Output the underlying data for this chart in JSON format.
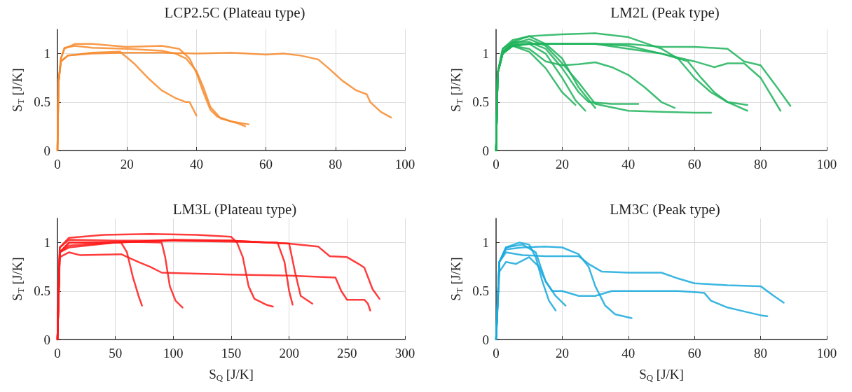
{
  "chart_data": [
    {
      "type": "line",
      "title": "LCP2.5C (Plateau type)",
      "ylabel": "S$_{T}$ [J/K]",
      "xlim": [
        0,
        100
      ],
      "xticks": [
        0,
        20,
        40,
        60,
        80,
        100
      ],
      "ylim": [
        0,
        1.25
      ],
      "yticks": [
        0,
        0.5,
        1
      ],
      "grid": true,
      "series": [
        {
          "color": "#f7892b",
          "x": [
            0,
            0.3,
            1,
            2,
            5,
            10,
            20,
            30,
            35,
            38,
            40,
            42,
            44,
            46,
            50,
            55
          ],
          "values": [
            0,
            0.7,
            0.95,
            1.05,
            1.1,
            1.1,
            1.07,
            1.08,
            1.05,
            0.95,
            0.8,
            0.6,
            0.42,
            0.35,
            0.3,
            0.27
          ]
        },
        {
          "color": "#f7892b",
          "x": [
            0,
            0.3,
            1,
            2,
            5,
            10,
            20,
            30,
            34,
            37,
            40,
            42,
            44,
            47,
            52,
            54
          ],
          "values": [
            0,
            0.7,
            0.95,
            1.06,
            1.08,
            1.06,
            1.05,
            1.03,
            1,
            0.95,
            0.82,
            0.65,
            0.45,
            0.33,
            0.28,
            0.25
          ]
        },
        {
          "color": "#f7892b",
          "x": [
            0,
            0.3,
            1,
            3,
            10,
            18,
            22,
            26,
            30,
            34,
            37,
            38,
            40
          ],
          "values": [
            0,
            0.7,
            0.92,
            0.98,
            1.01,
            1.02,
            0.9,
            0.75,
            0.62,
            0.54,
            0.5,
            0.5,
            0.36
          ]
        },
        {
          "color": "#f7892b",
          "x": [
            0,
            0.3,
            1,
            3,
            10,
            20,
            30,
            40,
            50,
            60,
            65,
            70,
            75,
            78,
            82,
            86,
            89,
            90,
            93,
            96
          ],
          "values": [
            0,
            0.7,
            0.92,
            0.98,
            1,
            1.01,
            1.01,
            1,
            1.01,
            0.99,
            1,
            0.98,
            0.94,
            0.85,
            0.72,
            0.62,
            0.58,
            0.5,
            0.4,
            0.34
          ]
        }
      ]
    },
    {
      "type": "line",
      "title": "LM2L (Peak type)",
      "ylabel": "S$_{T}$ [J/K]",
      "xlim": [
        0,
        100
      ],
      "xticks": [
        0,
        20,
        40,
        60,
        80,
        100
      ],
      "ylim": [
        0,
        1.25
      ],
      "yticks": [
        0,
        0.5,
        1
      ],
      "grid": true,
      "series": [
        {
          "color": "#1db35b",
          "x": [
            0,
            0.5,
            2,
            5,
            10,
            15,
            20,
            24
          ],
          "values": [
            0,
            0.8,
            1,
            1.08,
            1.02,
            0.85,
            0.6,
            0.47
          ]
        },
        {
          "color": "#1db35b",
          "x": [
            0,
            0.5,
            2,
            5,
            10,
            15,
            20,
            24,
            27
          ],
          "values": [
            0,
            0.8,
            1.02,
            1.1,
            1.1,
            1,
            0.75,
            0.52,
            0.41
          ]
        },
        {
          "color": "#1db35b",
          "x": [
            0,
            0.5,
            2,
            5,
            10,
            15,
            20,
            25,
            28,
            35,
            43
          ],
          "values": [
            0,
            0.8,
            1.05,
            1.12,
            1.12,
            1.05,
            0.85,
            0.6,
            0.5,
            0.48,
            0.48
          ]
        },
        {
          "color": "#1db35b",
          "x": [
            0,
            0.5,
            2,
            5,
            10,
            15,
            20,
            25,
            30
          ],
          "values": [
            0,
            0.8,
            1.05,
            1.14,
            1.18,
            1.1,
            0.95,
            0.65,
            0.44
          ]
        },
        {
          "color": "#1db35b",
          "x": [
            0,
            0.5,
            2,
            5,
            10,
            15,
            20,
            25,
            30,
            35,
            40,
            45,
            50,
            54
          ],
          "values": [
            0,
            0.8,
            1,
            1.08,
            1.05,
            0.92,
            0.88,
            0.89,
            0.91,
            0.86,
            0.78,
            0.65,
            0.5,
            0.44
          ]
        },
        {
          "color": "#1db35b",
          "x": [
            0,
            0.5,
            2,
            5,
            10,
            15,
            20,
            25,
            30,
            40,
            50,
            60,
            65
          ],
          "values": [
            0,
            0.8,
            1,
            1.1,
            1.15,
            1.08,
            0.9,
            0.7,
            0.48,
            0.41,
            0.4,
            0.39,
            0.39
          ]
        },
        {
          "color": "#1db35b",
          "x": [
            0,
            0.5,
            2,
            5,
            10,
            20,
            30,
            40,
            50,
            55,
            60,
            65,
            70,
            76
          ],
          "values": [
            0,
            0.8,
            1.02,
            1.12,
            1.18,
            1.2,
            1.21,
            1.17,
            1.05,
            0.95,
            0.75,
            0.6,
            0.5,
            0.47
          ]
        },
        {
          "color": "#1db35b",
          "x": [
            0,
            0.5,
            2,
            5,
            10,
            20,
            30,
            40,
            50,
            58,
            62,
            66,
            70,
            76
          ],
          "values": [
            0,
            0.8,
            1,
            1.08,
            1.1,
            1.1,
            1.1,
            1.08,
            1,
            0.92,
            0.75,
            0.6,
            0.5,
            0.41
          ]
        },
        {
          "color": "#1db35b",
          "x": [
            0,
            0.5,
            2,
            5,
            10,
            20,
            30,
            40,
            50,
            60,
            66,
            70,
            75,
            80,
            86
          ],
          "values": [
            0,
            0.8,
            1,
            1.08,
            1.1,
            1.1,
            1.1,
            1.05,
            1,
            0.92,
            0.86,
            0.9,
            0.9,
            0.75,
            0.41
          ]
        },
        {
          "color": "#1db35b",
          "x": [
            0,
            0.5,
            2,
            5,
            10,
            20,
            30,
            40,
            50,
            60,
            70,
            75,
            80,
            85,
            89
          ],
          "values": [
            0,
            0.8,
            1,
            1.08,
            1.1,
            1.1,
            1.1,
            1.1,
            1.07,
            1.07,
            1.05,
            0.92,
            0.88,
            0.65,
            0.46
          ]
        }
      ]
    },
    {
      "type": "line",
      "title": "LM3L (Plateau type)",
      "xlabel": "S$_{Q}$ [J/K]",
      "ylabel": "S$_{T}$ [J/K]",
      "xlim": [
        0,
        300
      ],
      "xticks": [
        0,
        50,
        100,
        150,
        200,
        250,
        300
      ],
      "ylim": [
        0,
        1.25
      ],
      "yticks": [
        0,
        0.5,
        1
      ],
      "grid": true,
      "series": [
        {
          "color": "#ff1a1a",
          "x": [
            0,
            2,
            10,
            30,
            55,
            60,
            65,
            70,
            73
          ],
          "values": [
            0,
            0.9,
            1,
            1,
            1,
            0.9,
            0.65,
            0.45,
            0.35
          ]
        },
        {
          "color": "#ff1a1a",
          "x": [
            0,
            2,
            10,
            30,
            60,
            90,
            93,
            97,
            102,
            108
          ],
          "values": [
            0,
            0.9,
            1,
            1,
            1.01,
            1,
            0.85,
            0.55,
            0.4,
            0.33
          ]
        },
        {
          "color": "#ff1a1a",
          "x": [
            0,
            2,
            10,
            40,
            80,
            120,
            150,
            155,
            160,
            165,
            170,
            180,
            186
          ],
          "values": [
            0,
            0.95,
            1.05,
            1.08,
            1.09,
            1.08,
            1.06,
            1,
            0.85,
            0.55,
            0.42,
            0.36,
            0.34
          ]
        },
        {
          "color": "#ff1a1a",
          "x": [
            0,
            2,
            10,
            50,
            100,
            150,
            190,
            196,
            200,
            203
          ],
          "values": [
            0,
            0.95,
            1.03,
            1.02,
            1.02,
            1.01,
            1,
            0.8,
            0.5,
            0.36
          ]
        },
        {
          "color": "#ff1a1a",
          "x": [
            0,
            2,
            10,
            50,
            100,
            150,
            200,
            205,
            210,
            220
          ],
          "values": [
            0,
            0.9,
            0.97,
            1,
            1.02,
            1.02,
            0.99,
            0.7,
            0.45,
            0.37
          ]
        },
        {
          "color": "#ff1a1a",
          "x": [
            0,
            2,
            10,
            50,
            100,
            150,
            200,
            225,
            235,
            250,
            260,
            265,
            272,
            278
          ],
          "values": [
            0,
            0.9,
            0.95,
            1,
            1.03,
            1.02,
            0.99,
            0.96,
            0.86,
            0.85,
            0.78,
            0.74,
            0.52,
            0.42
          ]
        },
        {
          "color": "#ff1a1a",
          "x": [
            0,
            2,
            10,
            20,
            55,
            70,
            80,
            90,
            150,
            200,
            240,
            245,
            250,
            265,
            268,
            270
          ],
          "values": [
            0,
            0.85,
            0.9,
            0.87,
            0.88,
            0.8,
            0.75,
            0.69,
            0.67,
            0.66,
            0.64,
            0.5,
            0.41,
            0.41,
            0.37,
            0.3
          ]
        }
      ]
    },
    {
      "type": "line",
      "title": "LM3C (Peak type)",
      "xlabel": "S$_{Q}$ [J/K]",
      "ylabel": "S$_{T}$ [J/K]",
      "xlim": [
        0,
        100
      ],
      "xticks": [
        0,
        20,
        40,
        60,
        80,
        100
      ],
      "ylim": [
        0,
        1.25
      ],
      "yticks": [
        0,
        0.5,
        1
      ],
      "grid": true,
      "series": [
        {
          "color": "#19a9dc",
          "x": [
            0,
            1,
            3,
            7,
            10,
            12,
            14,
            16,
            18
          ],
          "values": [
            0,
            0.8,
            0.95,
            1,
            0.98,
            0.85,
            0.6,
            0.4,
            0.3
          ]
        },
        {
          "color": "#19a9dc",
          "x": [
            0,
            1,
            3,
            6,
            10,
            13,
            15,
            17,
            20,
            25,
            30,
            35,
            40,
            45,
            50,
            55,
            60,
            63,
            65,
            70,
            75,
            80,
            82
          ],
          "values": [
            0,
            0.7,
            0.8,
            0.78,
            0.85,
            0.75,
            0.6,
            0.5,
            0.5,
            0.45,
            0.45,
            0.5,
            0.5,
            0.5,
            0.5,
            0.5,
            0.49,
            0.48,
            0.4,
            0.33,
            0.29,
            0.25,
            0.24
          ]
        },
        {
          "color": "#19a9dc",
          "x": [
            0,
            1,
            3,
            8,
            12,
            15,
            18,
            21
          ],
          "values": [
            0,
            0.8,
            0.95,
            0.98,
            0.9,
            0.6,
            0.45,
            0.35
          ]
        },
        {
          "color": "#19a9dc",
          "x": [
            0,
            1,
            3,
            8,
            15,
            20,
            25,
            28,
            30,
            33,
            36,
            41
          ],
          "values": [
            0,
            0.8,
            0.93,
            0.95,
            0.96,
            0.95,
            0.88,
            0.75,
            0.55,
            0.35,
            0.26,
            0.22
          ]
        },
        {
          "color": "#19a9dc",
          "x": [
            0,
            1,
            3,
            8,
            15,
            20,
            25,
            28,
            32,
            40,
            50,
            55,
            60,
            70,
            80,
            84,
            87
          ],
          "values": [
            0,
            0.8,
            0.9,
            0.87,
            0.86,
            0.86,
            0.86,
            0.78,
            0.7,
            0.69,
            0.69,
            0.63,
            0.58,
            0.56,
            0.55,
            0.45,
            0.38
          ]
        }
      ]
    }
  ]
}
